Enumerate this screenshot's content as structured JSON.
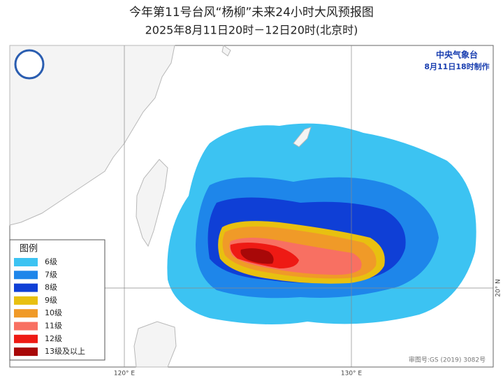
{
  "header": {
    "title": "今年第11号台风“杨柳”未来24小时大风预报图",
    "subtitle": "2025年8月11日20时－12日20时(北京时)"
  },
  "agency": {
    "name": "中央气象台",
    "made": "8月11日18时制作"
  },
  "legend": {
    "title": "图例",
    "items": [
      {
        "label": "6级",
        "color": "#3cc3f2"
      },
      {
        "label": "7级",
        "color": "#1e86ea"
      },
      {
        "label": "8级",
        "color": "#0f3fd6"
      },
      {
        "label": "9级",
        "color": "#e8c010"
      },
      {
        "label": "10级",
        "color": "#f09a28"
      },
      {
        "label": "11级",
        "color": "#f87062"
      },
      {
        "label": "12级",
        "color": "#ee1a14"
      },
      {
        "label": "13级及以上",
        "color": "#a80808"
      }
    ]
  },
  "axes": {
    "lon": [
      "120° E",
      "130° E"
    ],
    "lat": [
      "20° N"
    ]
  },
  "footer": {
    "approval": "审图号:GS (2019) 3082号"
  }
}
